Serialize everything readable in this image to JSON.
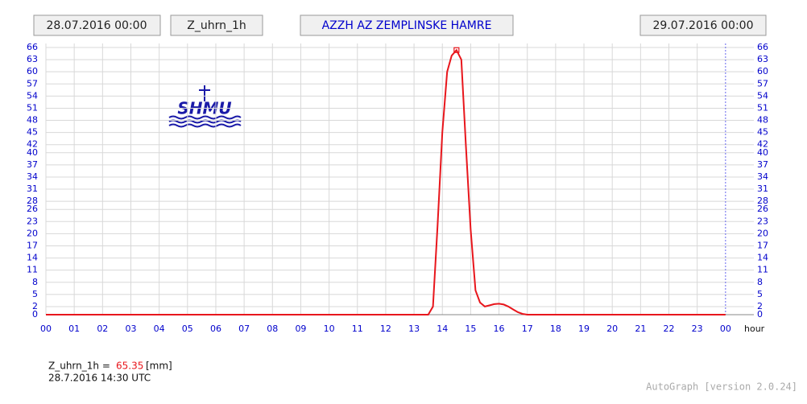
{
  "header": {
    "start": "28.07.2016 00:00",
    "variable": "Z_uhrn_1h",
    "station": "AZZH AZ ZEMPLINSKE HAMRE",
    "end": "29.07.2016 00:00"
  },
  "logo": "SHMU",
  "chart_data": {
    "type": "line",
    "x_label": "hour",
    "x": [
      0,
      13.5,
      13.67,
      13.83,
      14,
      14.17,
      14.33,
      14.5,
      14.67,
      14.83,
      15,
      15.17,
      15.33,
      15.5,
      15.67,
      15.83,
      16,
      16.17,
      16.33,
      16.5,
      16.67,
      16.83,
      17,
      24
    ],
    "series": [
      {
        "name": "Z_uhrn_1h",
        "color": "#e8161c",
        "values": [
          0,
          0,
          2,
          22,
          45,
          60,
          64,
          65.35,
          63,
          42,
          21,
          6,
          3,
          2,
          2.3,
          2.6,
          2.7,
          2.5,
          2,
          1.3,
          0.6,
          0.2,
          0,
          0
        ]
      }
    ],
    "xlim": [
      0,
      25
    ],
    "xticks": [
      {
        "value": 0,
        "label": "00"
      },
      {
        "value": 1,
        "label": "01"
      },
      {
        "value": 2,
        "label": "02"
      },
      {
        "value": 3,
        "label": "03"
      },
      {
        "value": 4,
        "label": "04"
      },
      {
        "value": 5,
        "label": "05"
      },
      {
        "value": 6,
        "label": "06"
      },
      {
        "value": 7,
        "label": "07"
      },
      {
        "value": 8,
        "label": "08"
      },
      {
        "value": 9,
        "label": "09"
      },
      10,
      11,
      12,
      13,
      14,
      15,
      16,
      17,
      18,
      19,
      20,
      21,
      22,
      23,
      {
        "value": 24,
        "label": "00"
      }
    ],
    "ylim": [
      0,
      66
    ],
    "yticks": [
      0,
      2,
      5,
      8,
      11,
      14,
      17,
      20,
      23,
      26,
      28,
      31,
      34,
      37,
      40,
      42,
      45,
      48,
      51,
      54,
      57,
      60,
      63,
      66
    ],
    "grid": true,
    "readout": {
      "label": "Z_uhrn_1h =",
      "value": 65.35,
      "unit": "[mm]",
      "time": "28.7.2016 14:30 UTC"
    }
  },
  "footer": "AutoGraph [version 2.0.24]"
}
